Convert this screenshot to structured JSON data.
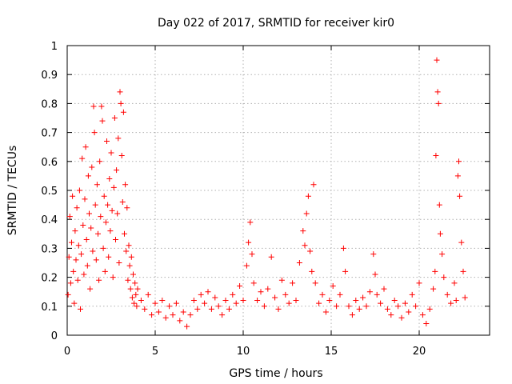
{
  "chart_data": {
    "type": "scatter",
    "title": "Day 022 of 2017, SRMTID for receiver kir0",
    "xlabel": "GPS time / hours",
    "ylabel": "SRMTID / TECUs",
    "xlim": [
      0,
      24
    ],
    "ylim": [
      0,
      1
    ],
    "xticks": [
      0,
      5,
      10,
      15,
      20
    ],
    "xtick_labels": [
      "0",
      "5",
      "10",
      "15",
      "20"
    ],
    "yticks": [
      0,
      0.1,
      0.2,
      0.3,
      0.4,
      0.5,
      0.6,
      0.7,
      0.8,
      0.9,
      1
    ],
    "ytick_labels": [
      "0",
      "0.1",
      "0.2",
      "0.3",
      "0.4",
      "0.5",
      "0.6",
      "0.7",
      "0.8",
      "0.9",
      "1"
    ],
    "grid": true,
    "marker": "+",
    "color": "#ff0000",
    "series": [
      {
        "name": "SRMTID",
        "points": [
          [
            0.05,
            0.14
          ],
          [
            0.1,
            0.27
          ],
          [
            0.15,
            0.41
          ],
          [
            0.2,
            0.18
          ],
          [
            0.25,
            0.32
          ],
          [
            0.3,
            0.48
          ],
          [
            0.35,
            0.22
          ],
          [
            0.4,
            0.11
          ],
          [
            0.45,
            0.36
          ],
          [
            0.5,
            0.26
          ],
          [
            0.55,
            0.44
          ],
          [
            0.6,
            0.19
          ],
          [
            0.65,
            0.31
          ],
          [
            0.7,
            0.5
          ],
          [
            0.75,
            0.09
          ],
          [
            0.8,
            0.28
          ],
          [
            0.85,
            0.61
          ],
          [
            0.9,
            0.38
          ],
          [
            0.95,
            0.21
          ],
          [
            1.0,
            0.47
          ],
          [
            1.05,
            0.65
          ],
          [
            1.1,
            0.33
          ],
          [
            1.15,
            0.24
          ],
          [
            1.2,
            0.55
          ],
          [
            1.25,
            0.42
          ],
          [
            1.3,
            0.16
          ],
          [
            1.35,
            0.37
          ],
          [
            1.4,
            0.58
          ],
          [
            1.45,
            0.29
          ],
          [
            1.5,
            0.79
          ],
          [
            1.55,
            0.7
          ],
          [
            1.6,
            0.45
          ],
          [
            1.65,
            0.26
          ],
          [
            1.7,
            0.52
          ],
          [
            1.75,
            0.35
          ],
          [
            1.8,
            0.19
          ],
          [
            1.85,
            0.6
          ],
          [
            1.9,
            0.41
          ],
          [
            1.95,
            0.79
          ],
          [
            2.0,
            0.74
          ],
          [
            2.05,
            0.3
          ],
          [
            2.1,
            0.48
          ],
          [
            2.15,
            0.22
          ],
          [
            2.2,
            0.39
          ],
          [
            2.25,
            0.67
          ],
          [
            2.3,
            0.45
          ],
          [
            2.35,
            0.27
          ],
          [
            2.4,
            0.54
          ],
          [
            2.45,
            0.36
          ],
          [
            2.5,
            0.63
          ],
          [
            2.55,
            0.43
          ],
          [
            2.6,
            0.2
          ],
          [
            2.65,
            0.51
          ],
          [
            2.7,
            0.75
          ],
          [
            2.75,
            0.33
          ],
          [
            2.8,
            0.57
          ],
          [
            2.85,
            0.42
          ],
          [
            2.9,
            0.68
          ],
          [
            2.95,
            0.25
          ],
          [
            3.0,
            0.84
          ],
          [
            3.05,
            0.8
          ],
          [
            3.1,
            0.62
          ],
          [
            3.15,
            0.46
          ],
          [
            3.2,
            0.77
          ],
          [
            3.25,
            0.35
          ],
          [
            3.3,
            0.52
          ],
          [
            3.35,
            0.29
          ],
          [
            3.4,
            0.44
          ],
          [
            3.45,
            0.19
          ],
          [
            3.5,
            0.31
          ],
          [
            3.55,
            0.24
          ],
          [
            3.6,
            0.16
          ],
          [
            3.65,
            0.27
          ],
          [
            3.7,
            0.13
          ],
          [
            3.75,
            0.21
          ],
          [
            3.8,
            0.11
          ],
          [
            3.85,
            0.18
          ],
          [
            3.9,
            0.14
          ],
          [
            3.95,
            0.1
          ],
          [
            4.0,
            0.16
          ],
          [
            4.2,
            0.12
          ],
          [
            4.4,
            0.09
          ],
          [
            4.6,
            0.14
          ],
          [
            4.8,
            0.07
          ],
          [
            5.0,
            0.11
          ],
          [
            5.2,
            0.08
          ],
          [
            5.4,
            0.12
          ],
          [
            5.6,
            0.06
          ],
          [
            5.8,
            0.1
          ],
          [
            6.0,
            0.07
          ],
          [
            6.2,
            0.11
          ],
          [
            6.4,
            0.05
          ],
          [
            6.6,
            0.08
          ],
          [
            6.8,
            0.03
          ],
          [
            7.0,
            0.07
          ],
          [
            7.2,
            0.12
          ],
          [
            7.4,
            0.09
          ],
          [
            7.6,
            0.14
          ],
          [
            7.8,
            0.11
          ],
          [
            8.0,
            0.15
          ],
          [
            8.2,
            0.09
          ],
          [
            8.4,
            0.13
          ],
          [
            8.6,
            0.1
          ],
          [
            8.8,
            0.07
          ],
          [
            9.0,
            0.12
          ],
          [
            9.2,
            0.09
          ],
          [
            9.4,
            0.14
          ],
          [
            9.6,
            0.11
          ],
          [
            9.8,
            0.17
          ],
          [
            10.0,
            0.12
          ],
          [
            10.2,
            0.24
          ],
          [
            10.3,
            0.32
          ],
          [
            10.4,
            0.39
          ],
          [
            10.5,
            0.28
          ],
          [
            10.6,
            0.18
          ],
          [
            10.8,
            0.12
          ],
          [
            11.0,
            0.15
          ],
          [
            11.2,
            0.1
          ],
          [
            11.4,
            0.16
          ],
          [
            11.6,
            0.27
          ],
          [
            11.8,
            0.13
          ],
          [
            12.0,
            0.09
          ],
          [
            12.2,
            0.19
          ],
          [
            12.4,
            0.14
          ],
          [
            12.6,
            0.11
          ],
          [
            12.8,
            0.18
          ],
          [
            13.0,
            0.12
          ],
          [
            13.2,
            0.25
          ],
          [
            13.4,
            0.36
          ],
          [
            13.5,
            0.31
          ],
          [
            13.6,
            0.42
          ],
          [
            13.7,
            0.48
          ],
          [
            13.8,
            0.29
          ],
          [
            13.9,
            0.22
          ],
          [
            14.0,
            0.52
          ],
          [
            14.1,
            0.18
          ],
          [
            14.3,
            0.11
          ],
          [
            14.5,
            0.14
          ],
          [
            14.7,
            0.08
          ],
          [
            14.9,
            0.12
          ],
          [
            15.1,
            0.17
          ],
          [
            15.3,
            0.1
          ],
          [
            15.5,
            0.14
          ],
          [
            15.7,
            0.3
          ],
          [
            15.8,
            0.22
          ],
          [
            16.0,
            0.1
          ],
          [
            16.2,
            0.07
          ],
          [
            16.4,
            0.12
          ],
          [
            16.6,
            0.09
          ],
          [
            16.8,
            0.13
          ],
          [
            17.0,
            0.1
          ],
          [
            17.2,
            0.15
          ],
          [
            17.4,
            0.28
          ],
          [
            17.5,
            0.21
          ],
          [
            17.6,
            0.14
          ],
          [
            17.8,
            0.11
          ],
          [
            18.0,
            0.16
          ],
          [
            18.2,
            0.09
          ],
          [
            18.4,
            0.07
          ],
          [
            18.6,
            0.12
          ],
          [
            18.8,
            0.1
          ],
          [
            19.0,
            0.06
          ],
          [
            19.2,
            0.11
          ],
          [
            19.4,
            0.08
          ],
          [
            19.6,
            0.14
          ],
          [
            19.8,
            0.1
          ],
          [
            20.0,
            0.18
          ],
          [
            20.2,
            0.07
          ],
          [
            20.4,
            0.04
          ],
          [
            20.6,
            0.09
          ],
          [
            20.8,
            0.16
          ],
          [
            20.9,
            0.22
          ],
          [
            20.95,
            0.62
          ],
          [
            21.0,
            0.95
          ],
          [
            21.05,
            0.84
          ],
          [
            21.1,
            0.8
          ],
          [
            21.15,
            0.45
          ],
          [
            21.2,
            0.35
          ],
          [
            21.3,
            0.28
          ],
          [
            21.4,
            0.2
          ],
          [
            21.6,
            0.14
          ],
          [
            21.8,
            0.11
          ],
          [
            22.0,
            0.18
          ],
          [
            22.1,
            0.12
          ],
          [
            22.2,
            0.55
          ],
          [
            22.25,
            0.6
          ],
          [
            22.3,
            0.48
          ],
          [
            22.4,
            0.32
          ],
          [
            22.5,
            0.22
          ],
          [
            22.6,
            0.13
          ]
        ]
      }
    ]
  }
}
